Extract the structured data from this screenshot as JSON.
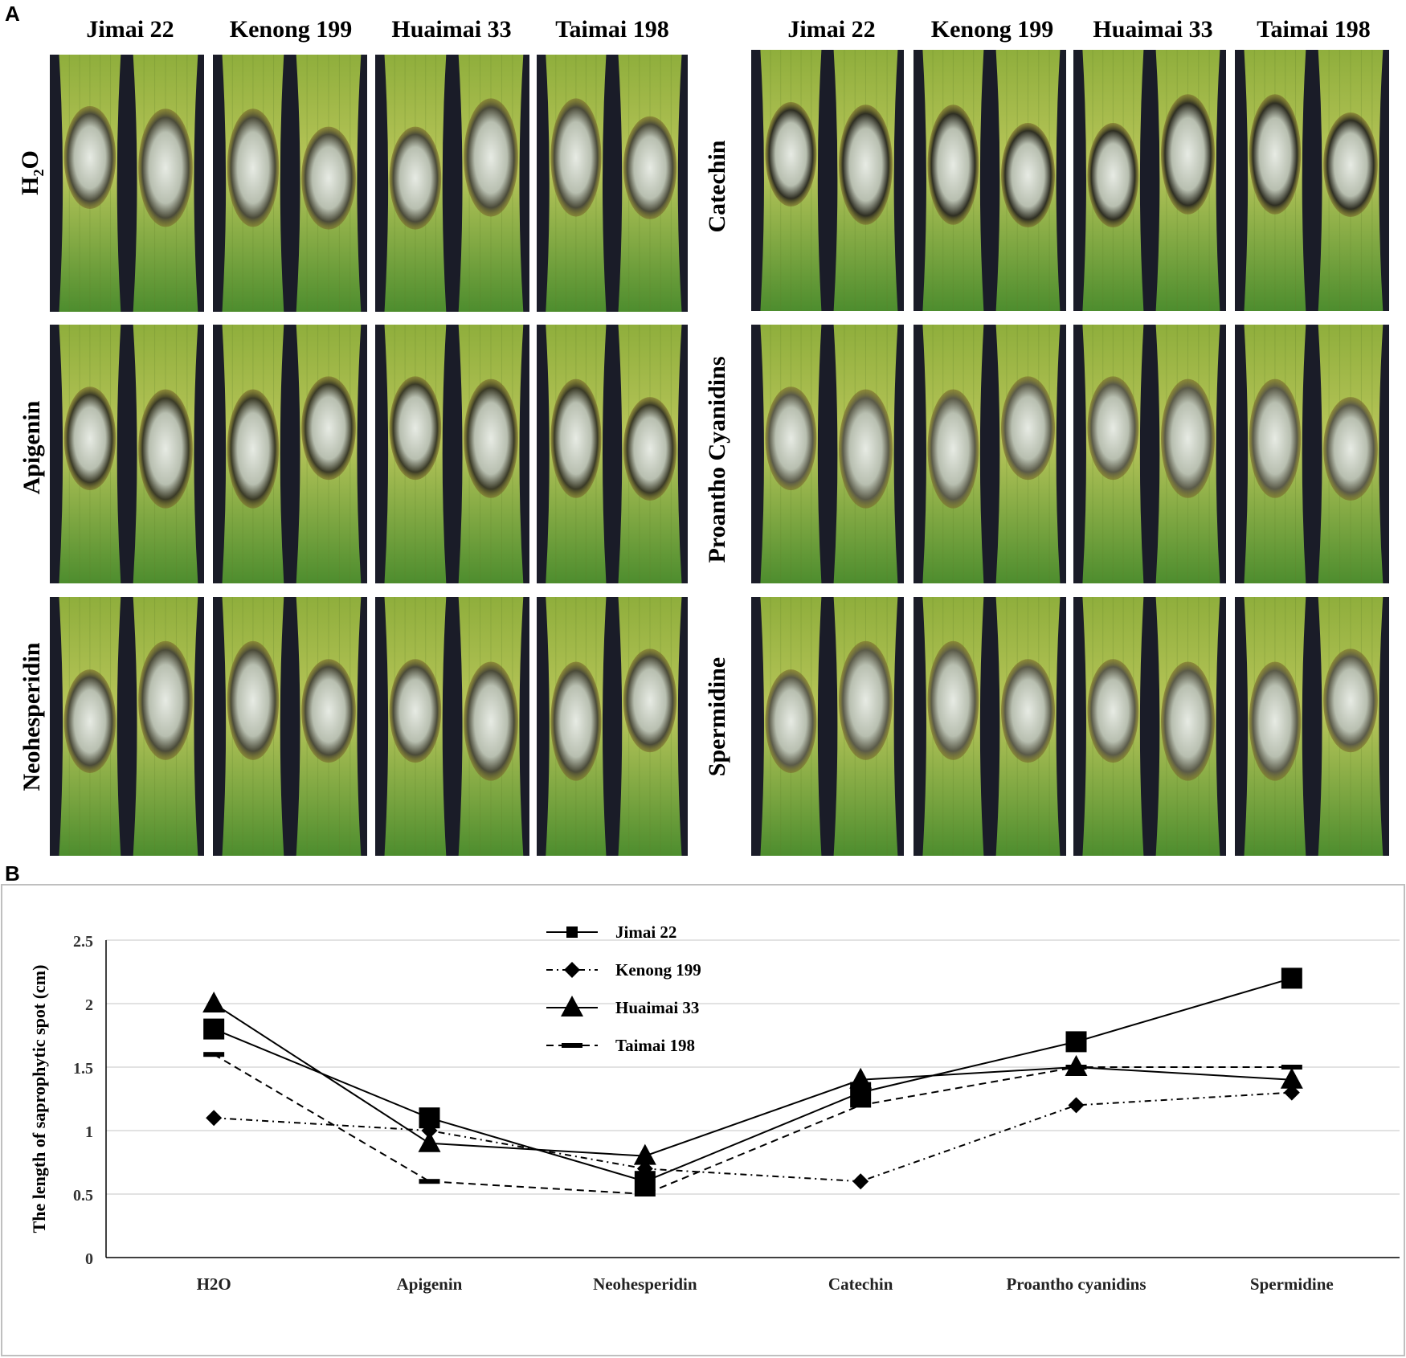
{
  "figure": {
    "panel_a": "A",
    "panel_b": "B",
    "varieties": [
      "Jimai 22",
      "Kenong 199",
      "Huaimai 33",
      "Taimai 198"
    ],
    "left_rows": [
      "H2O",
      "Apigenin",
      "Neohesperidin"
    ],
    "right_rows": [
      "Catechin",
      "Proantho Cyanidins",
      "Spermidine"
    ]
  },
  "chart_data": {
    "type": "line",
    "ylabel": "The length of saprophytic spot (cm)",
    "xlabel": "",
    "categories": [
      "H2O",
      "Apigenin",
      "Neohesperidin",
      "Catechin",
      "Proantho cyanidins",
      "Spermidine"
    ],
    "ylim": [
      0,
      2.5
    ],
    "yticks": [
      "0",
      "0.5",
      "1",
      "1.5",
      "2",
      "2.5"
    ],
    "legend_position": "top-center",
    "series": [
      {
        "name": "Jimai 22",
        "marker": "square",
        "line": "solid",
        "values": [
          1.8,
          1.1,
          0.6,
          1.3,
          1.7,
          2.2
        ]
      },
      {
        "name": "Kenong 199",
        "marker": "diamond",
        "line": "dashdot",
        "values": [
          1.1,
          1.0,
          0.7,
          0.6,
          1.2,
          1.3
        ]
      },
      {
        "name": "Huaimai 33",
        "marker": "triangle",
        "line": "solid",
        "values": [
          2.0,
          0.9,
          0.8,
          1.4,
          1.5,
          1.4
        ]
      },
      {
        "name": "Taimai 198",
        "marker": "dash",
        "line": "dashed",
        "values": [
          1.6,
          0.6,
          0.5,
          1.2,
          1.5,
          1.5
        ]
      }
    ]
  }
}
